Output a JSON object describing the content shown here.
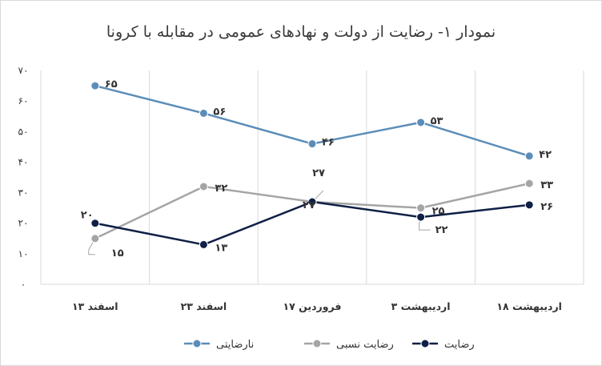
{
  "chart_data": {
    "type": "line",
    "title": "نمودار ۱- رضایت از دولت و نهادهای عمومی در مقابله با کرونا",
    "categories": [
      "۱۳ اسفند",
      "۲۳ اسفند",
      "۱۷ فروردین",
      "۳ اردیبهشت",
      "۱۸ اردیبهشت"
    ],
    "y_ticks": [
      "۰",
      "۱۰",
      "۲۰",
      "۳۰",
      "۴۰",
      "۵۰",
      "۶۰",
      "۷۰"
    ],
    "ylim": [
      0,
      70
    ],
    "grid": "vertical",
    "legend_position": "bottom",
    "series": [
      {
        "name": "نارضایتی",
        "values": [
          65,
          56,
          46,
          53,
          42
        ],
        "labels": [
          "۶۵",
          "۵۶",
          "۴۶",
          "۵۳",
          "۴۲"
        ],
        "color": "#5b8db8"
      },
      {
        "name": "رضایت نسبی",
        "values": [
          15,
          32,
          27,
          25,
          33
        ],
        "labels": [
          "۱۵",
          "۳۲",
          "۲۷",
          "۲۵",
          "۳۳"
        ],
        "color": "#a5a5a5"
      },
      {
        "name": "رضایت",
        "values": [
          20,
          13,
          27,
          22,
          26
        ],
        "labels": [
          "۲۰",
          "۱۳",
          "۲۷",
          "۲۲",
          "۲۶"
        ],
        "color": "#0f1f45"
      }
    ]
  }
}
